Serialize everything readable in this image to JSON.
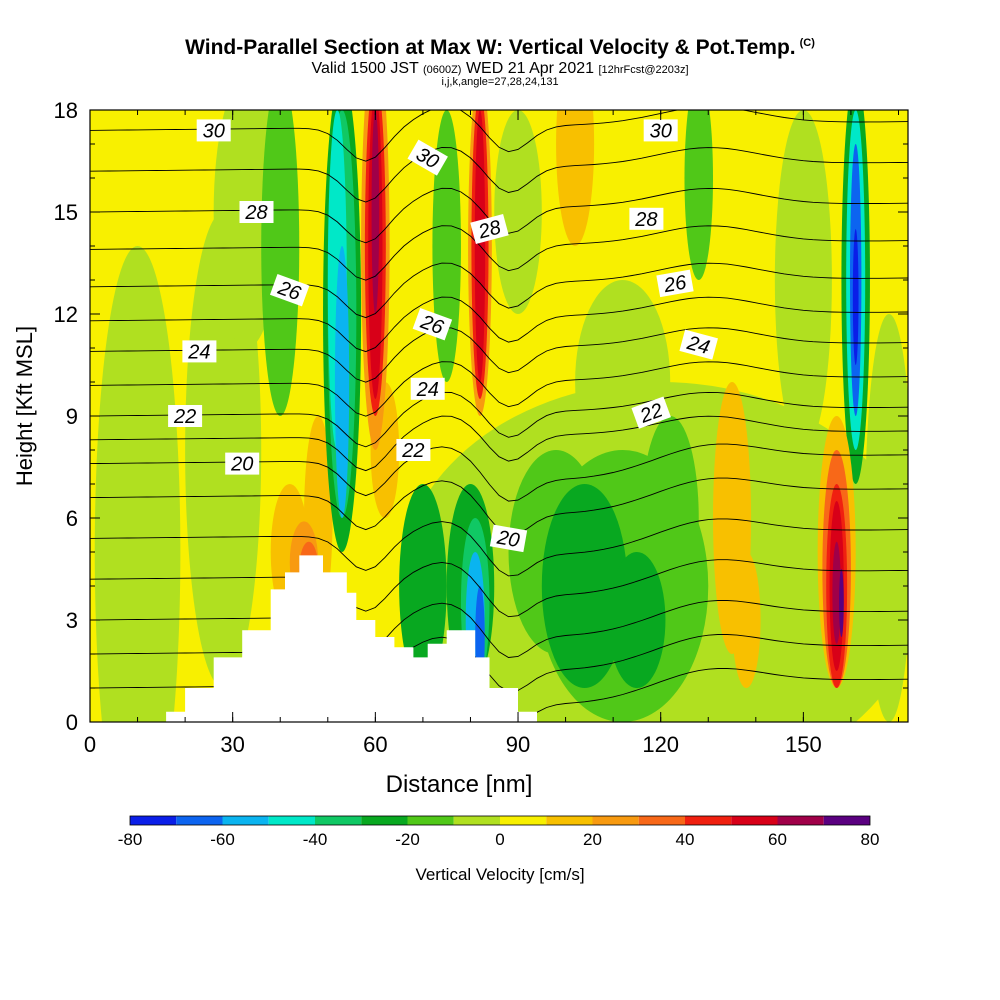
{
  "header": {
    "title_main": "Wind-Parallel Section at Max W: Vertical Velocity & Pot.Temp.",
    "title_copyright": "(C)",
    "valid_prefix": "Valid 1500 JST",
    "valid_utc": "(0600Z)",
    "valid_date": "WED 21 Apr 2021",
    "forecast_info": "[12hrFcst@2203z]",
    "indices": "i,j,k,angle=27,28,24,131"
  },
  "colorbar": {
    "title": "Vertical Velocity [cm/s]",
    "ticks": [
      "-80",
      "-60",
      "-40",
      "-20",
      "0",
      "20",
      "40",
      "60",
      "80"
    ],
    "colors": [
      "#0a1ee8",
      "#0c64f0",
      "#0ab4f0",
      "#00e8c8",
      "#10c864",
      "#08a820",
      "#50c818",
      "#b0e020",
      "#f8f000",
      "#f8c000",
      "#f89a10",
      "#f86818",
      "#f02010",
      "#d80018",
      "#a00048",
      "#5a0080"
    ]
  },
  "chart_data": {
    "type": "heatmap",
    "xlabel": "Distance [nm]",
    "ylabel": "Height [Kft MSL]",
    "xlim": [
      0,
      172
    ],
    "ylim": [
      0,
      18
    ],
    "xticks": [
      "0",
      "30",
      "60",
      "90",
      "120",
      "150"
    ],
    "yticks": [
      "0",
      "3",
      "6",
      "9",
      "12",
      "15",
      "18"
    ],
    "color_variable": "Vertical Velocity [cm/s]",
    "color_range": [
      -80,
      80
    ],
    "contour_variable": "Potential Temperature",
    "contour_labels": [
      {
        "text": "30",
        "x": 26,
        "y": 17.4,
        "angle": 0
      },
      {
        "text": "30",
        "x": 71,
        "y": 16.6,
        "angle": 30
      },
      {
        "text": "30",
        "x": 120,
        "y": 17.4,
        "angle": 0
      },
      {
        "text": "28",
        "x": 35,
        "y": 15.0,
        "angle": 0
      },
      {
        "text": "28",
        "x": 84,
        "y": 14.5,
        "angle": -15
      },
      {
        "text": "28",
        "x": 117,
        "y": 14.8,
        "angle": 0
      },
      {
        "text": "26",
        "x": 42,
        "y": 12.7,
        "angle": 20
      },
      {
        "text": "26",
        "x": 72,
        "y": 11.7,
        "angle": 20
      },
      {
        "text": "26",
        "x": 123,
        "y": 12.9,
        "angle": -10
      },
      {
        "text": "24",
        "x": 23,
        "y": 10.9,
        "angle": 0
      },
      {
        "text": "24",
        "x": 71,
        "y": 9.8,
        "angle": 0
      },
      {
        "text": "24",
        "x": 128,
        "y": 11.1,
        "angle": 15
      },
      {
        "text": "22",
        "x": 20,
        "y": 9.0,
        "angle": 0
      },
      {
        "text": "22",
        "x": 68,
        "y": 8.0,
        "angle": 0
      },
      {
        "text": "22",
        "x": 118,
        "y": 9.1,
        "angle": -20
      },
      {
        "text": "20",
        "x": 32,
        "y": 7.6,
        "angle": 0
      },
      {
        "text": "20",
        "x": 88,
        "y": 5.4,
        "angle": 10
      }
    ],
    "terrain_profile": [
      [
        16,
        0
      ],
      [
        16,
        0.3
      ],
      [
        20,
        0.3
      ],
      [
        20,
        1.0
      ],
      [
        26,
        1.0
      ],
      [
        26,
        1.9
      ],
      [
        32,
        1.9
      ],
      [
        32,
        2.7
      ],
      [
        38,
        2.7
      ],
      [
        38,
        3.9
      ],
      [
        41,
        3.9
      ],
      [
        41,
        4.4
      ],
      [
        44,
        4.4
      ],
      [
        44,
        4.9
      ],
      [
        49,
        4.9
      ],
      [
        49,
        4.4
      ],
      [
        54,
        4.4
      ],
      [
        54,
        3.8
      ],
      [
        56,
        3.8
      ],
      [
        56,
        3.0
      ],
      [
        60,
        3.0
      ],
      [
        60,
        2.5
      ],
      [
        64,
        2.5
      ],
      [
        64,
        2.2
      ],
      [
        68,
        2.2
      ],
      [
        68,
        1.9
      ],
      [
        71,
        1.9
      ],
      [
        71,
        2.3
      ],
      [
        75,
        2.3
      ],
      [
        75,
        2.7
      ],
      [
        81,
        2.7
      ],
      [
        81,
        1.9
      ],
      [
        84,
        1.9
      ],
      [
        84,
        1.0
      ],
      [
        90,
        1.0
      ],
      [
        90,
        0.3
      ],
      [
        94,
        0.3
      ],
      [
        94,
        0
      ]
    ]
  }
}
